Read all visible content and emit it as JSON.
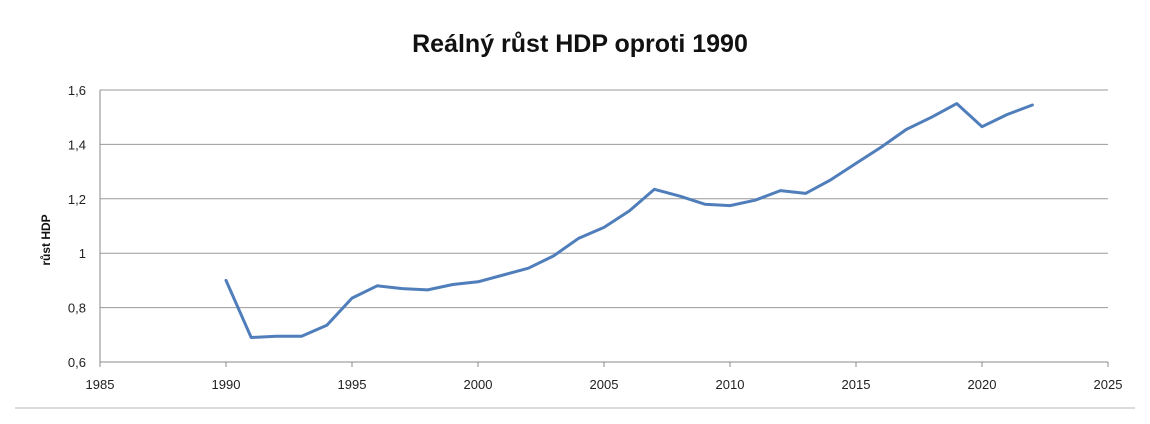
{
  "chart_data": {
    "type": "line",
    "title": "Reálný růst HDP oproti 1990",
    "xlabel": "",
    "ylabel": "růst HDP",
    "xlim": [
      1985,
      2025
    ],
    "ylim": [
      0.6,
      1.6
    ],
    "x_ticks": [
      "1985",
      "1990",
      "1995",
      "2000",
      "2005",
      "2010",
      "2015",
      "2020",
      "2025"
    ],
    "y_ticks": [
      "0,6",
      "0,8",
      "1",
      "1,2",
      "1,4",
      "1,6"
    ],
    "grid": "horizontal",
    "legend": "none",
    "series": [
      {
        "color": "#4F7EBB",
        "x": [
          1990,
          1991,
          1992,
          1993,
          1994,
          1995,
          1996,
          1997,
          1998,
          1999,
          2000,
          2001,
          2002,
          2003,
          2004,
          2005,
          2006,
          2007,
          2008,
          2009,
          2010,
          2011,
          2012,
          2013,
          2014,
          2015,
          2016,
          2017,
          2018,
          2019,
          2020,
          2021,
          2022
        ],
        "y": [
          0.9,
          0.69,
          0.695,
          0.695,
          0.735,
          0.835,
          0.88,
          0.87,
          0.865,
          0.885,
          0.895,
          0.92,
          0.945,
          0.99,
          1.055,
          1.095,
          1.155,
          1.235,
          1.21,
          1.18,
          1.175,
          1.195,
          1.23,
          1.22,
          1.27,
          1.33,
          1.39,
          1.455,
          1.5,
          1.55,
          1.465,
          1.51,
          1.545
        ]
      }
    ]
  }
}
